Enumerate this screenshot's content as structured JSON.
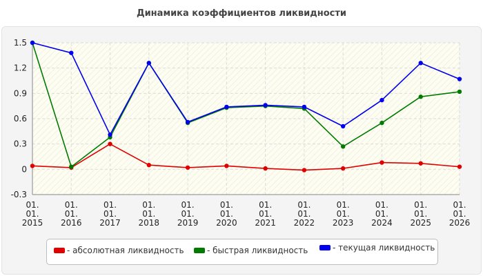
{
  "chart_data": {
    "type": "line",
    "title": "Динамика коэффициентов ликвидности",
    "xlabel": "",
    "ylabel": "",
    "x": [
      "01. 01. 2015",
      "01. 01. 2016",
      "01. 01. 2017",
      "01. 01. 2018",
      "01. 01. 2019",
      "01. 01. 2020",
      "01. 01. 2021",
      "01. 01. 2022",
      "01. 01. 2023",
      "01. 01. 2024",
      "01. 01. 2025",
      "01. 01. 2026"
    ],
    "x_tick_lines": [
      [
        "01.",
        "01.",
        "2015"
      ],
      [
        "01.",
        "01.",
        "2016"
      ],
      [
        "01.",
        "01.",
        "2017"
      ],
      [
        "01.",
        "01.",
        "2018"
      ],
      [
        "01.",
        "01.",
        "2019"
      ],
      [
        "01.",
        "01.",
        "2020"
      ],
      [
        "01.",
        "01.",
        "2021"
      ],
      [
        "01.",
        "01.",
        "2022"
      ],
      [
        "01.",
        "01.",
        "2023"
      ],
      [
        "01.",
        "01.",
        "2024"
      ],
      [
        "01.",
        "01.",
        "2025"
      ],
      [
        "01.",
        "01.",
        "2026"
      ]
    ],
    "ylim": [
      -0.3,
      1.5
    ],
    "yticks": [
      -0.3,
      0,
      0.3,
      0.6,
      0.9,
      1.2,
      1.5
    ],
    "ytick_labels": [
      "-0.3",
      "0",
      "0.3",
      "0.6",
      "0.9",
      "1.2",
      "1.5"
    ],
    "grid": true,
    "legend_position": "bottom",
    "series": [
      {
        "name": "- абсолютная ликвидность",
        "color": "#e00000",
        "values": [
          0.04,
          0.02,
          0.3,
          0.05,
          0.02,
          0.04,
          0.01,
          -0.01,
          0.01,
          0.08,
          0.07,
          0.03
        ]
      },
      {
        "name": "- быстрая ликвидность",
        "color": "#007a00",
        "values": [
          1.5,
          0.03,
          0.38,
          1.26,
          0.55,
          0.73,
          0.75,
          0.72,
          0.27,
          0.55,
          0.86,
          0.92
        ]
      },
      {
        "name": "- текущая ликвидность",
        "color": "#0000ee",
        "values": [
          1.5,
          1.38,
          0.41,
          1.26,
          0.56,
          0.74,
          0.76,
          0.74,
          0.51,
          0.82,
          1.26,
          1.07
        ]
      }
    ]
  }
}
